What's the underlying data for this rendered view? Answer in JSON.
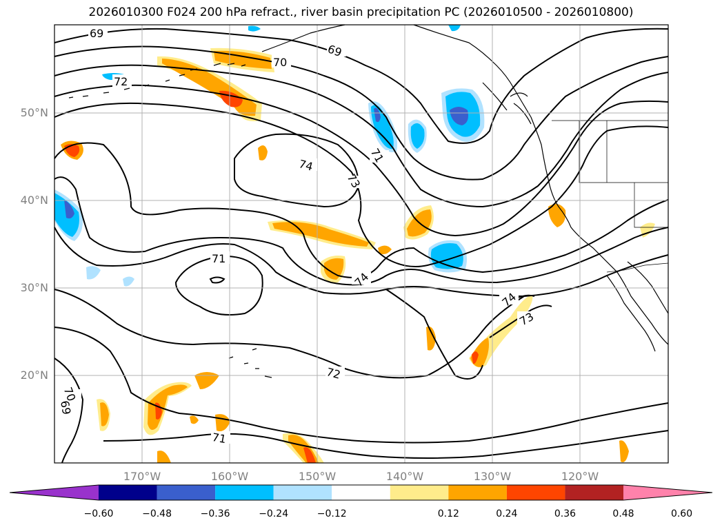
{
  "title": "2026010300 F024 200 hPa refract., river basin precipitation PC (2026010500 - 2026010800)",
  "lat_labels": [
    "50°N",
    "40°N",
    "30°N",
    "20°N"
  ],
  "lon_labels": [
    "170°W",
    "160°W",
    "150°W",
    "140°W",
    "130°W",
    "120°W"
  ],
  "contour_labels": [
    "69",
    "72",
    "70",
    "69",
    "74",
    "71",
    "73",
    "71",
    "74",
    "74",
    "73",
    "72",
    "70",
    "69",
    "71"
  ],
  "colorbar": {
    "colors": [
      "#9932cc",
      "#00008b",
      "#3a5fcd",
      "#00bfff",
      "#b0e2ff",
      "#ffffff",
      "#ffec8b",
      "#ffa500",
      "#ff4500",
      "#b22222",
      "#ff82ab"
    ],
    "tick_labels": [
      "−0.60",
      "−0.48",
      "−0.36",
      "−0.24",
      "−0.12",
      "0.12",
      "0.24",
      "0.36",
      "0.48",
      "0.60"
    ]
  },
  "colors": {
    "contour": "#000000",
    "coast": "#000000",
    "grid": "#b0b0b0"
  }
}
